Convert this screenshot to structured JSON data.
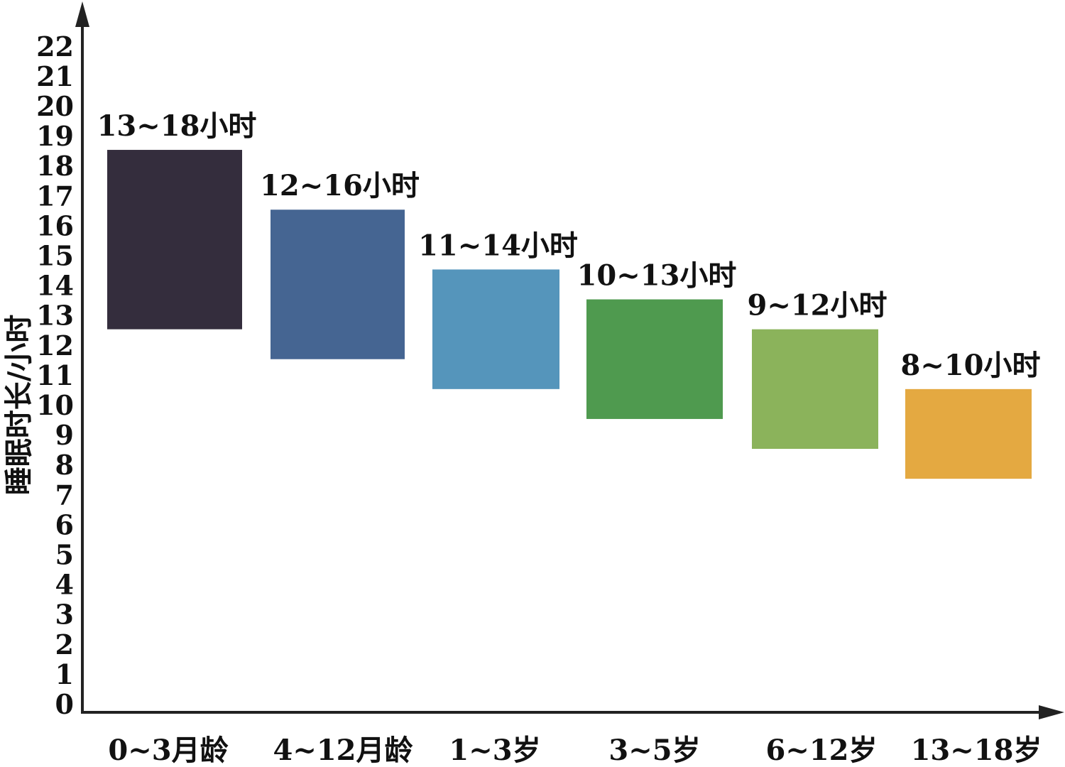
{
  "chart_data": {
    "type": "bar",
    "ylabel": "睡眠时长/小时",
    "xlabel": "",
    "title": "",
    "ylim": [
      0,
      22
    ],
    "yticks": [
      0,
      1,
      2,
      3,
      4,
      5,
      6,
      7,
      8,
      9,
      10,
      11,
      12,
      13,
      14,
      15,
      16,
      17,
      18,
      19,
      20,
      21,
      22
    ],
    "grid": false,
    "categories": [
      "0~3月龄",
      "4~12月龄",
      "1~3岁",
      "3~5岁",
      "6~12岁",
      "13~18岁"
    ],
    "ranges": [
      [
        13,
        18
      ],
      [
        12,
        16
      ],
      [
        11,
        14
      ],
      [
        10,
        13
      ],
      [
        9,
        12
      ],
      [
        8,
        10
      ]
    ],
    "labels": [
      "13~18小时",
      "12~16小时",
      "11~14小时",
      "10~13小时",
      "9~12小时",
      "8~10小时"
    ],
    "colors": [
      "#342d3d",
      "#456592",
      "#5595bb",
      "#4f9a4f",
      "#8bb35b",
      "#e4a941"
    ]
  }
}
